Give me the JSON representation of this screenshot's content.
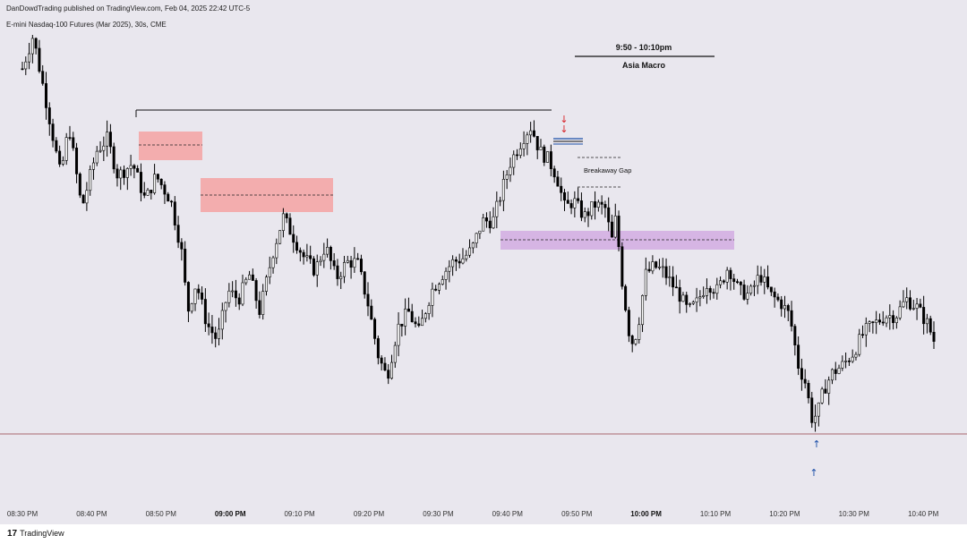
{
  "header": {
    "publisher": "DanDowdTrading published on TradingView.com, Feb 04, 2025 22:42 UTC-5",
    "symbol": "E-mini Nasdaq-100 Futures (Mar 2025), 30s, CME"
  },
  "annotations": {
    "session_time": "9:50 - 10:10pm",
    "session_name": "Asia Macro",
    "gap_label": "Breakaway Gap",
    "down_arrow": "↓",
    "up_arrow": "↑"
  },
  "footer": {
    "logo_mark": "17",
    "logo_text": "TradingView"
  },
  "colors": {
    "background": "#e9e7ee",
    "candle": "#000000",
    "bearish_zone": "#f4a6a6",
    "premium_zone": "#d5b2e3",
    "down_arrow": "#d9252b",
    "up_arrow": "#1c4fa8",
    "support_line": "#a9676e"
  },
  "chart_data": {
    "type": "candlestick",
    "timeframe": "30s",
    "x_ticks": [
      {
        "label": "08:30 PM",
        "bold": false
      },
      {
        "label": "08:40 PM",
        "bold": false
      },
      {
        "label": "08:50 PM",
        "bold": false
      },
      {
        "label": "09:00 PM",
        "bold": true
      },
      {
        "label": "09:10 PM",
        "bold": false
      },
      {
        "label": "09:20 PM",
        "bold": false
      },
      {
        "label": "09:30 PM",
        "bold": false
      },
      {
        "label": "09:40 PM",
        "bold": false
      },
      {
        "label": "09:50 PM",
        "bold": false
      },
      {
        "label": "10:00 PM",
        "bold": true
      },
      {
        "label": "10:10 PM",
        "bold": false
      },
      {
        "label": "10:20 PM",
        "bold": false
      },
      {
        "label": "10:30 PM",
        "bold": false
      },
      {
        "label": "10:40 PM",
        "bold": false
      }
    ],
    "price_path": [
      [
        0,
        0.92
      ],
      [
        0.5,
        1.0
      ],
      [
        1.2,
        0.82
      ],
      [
        1.8,
        0.66
      ],
      [
        2.2,
        0.78
      ],
      [
        2.8,
        0.58
      ],
      [
        3.5,
        0.72
      ],
      [
        4.0,
        0.75
      ],
      [
        4.5,
        0.66
      ],
      [
        5.2,
        0.69
      ],
      [
        5.8,
        0.6
      ],
      [
        6.3,
        0.66
      ],
      [
        7.0,
        0.6
      ],
      [
        7.5,
        0.48
      ],
      [
        7.8,
        0.33
      ],
      [
        8.2,
        0.4
      ],
      [
        8.7,
        0.3
      ],
      [
        9.2,
        0.26
      ],
      [
        9.7,
        0.38
      ],
      [
        10.2,
        0.36
      ],
      [
        10.7,
        0.42
      ],
      [
        11.2,
        0.33
      ],
      [
        11.8,
        0.47
      ],
      [
        12.3,
        0.56
      ],
      [
        12.8,
        0.51
      ],
      [
        13.3,
        0.46
      ],
      [
        13.8,
        0.43
      ],
      [
        14.3,
        0.49
      ],
      [
        14.8,
        0.41
      ],
      [
        15.3,
        0.45
      ],
      [
        15.8,
        0.45
      ],
      [
        16.3,
        0.35
      ],
      [
        16.8,
        0.22
      ],
      [
        17.2,
        0.17
      ],
      [
        17.7,
        0.29
      ],
      [
        18.2,
        0.33
      ],
      [
        18.7,
        0.28
      ],
      [
        19.3,
        0.38
      ],
      [
        19.8,
        0.42
      ],
      [
        20.3,
        0.45
      ],
      [
        20.8,
        0.46
      ],
      [
        21.2,
        0.48
      ],
      [
        21.7,
        0.55
      ],
      [
        22.2,
        0.55
      ],
      [
        22.6,
        0.62
      ],
      [
        23.0,
        0.69
      ],
      [
        23.3,
        0.72
      ],
      [
        23.7,
        0.76
      ],
      [
        24.0,
        0.78
      ],
      [
        24.4,
        0.72
      ],
      [
        24.8,
        0.7
      ],
      [
        25.2,
        0.66
      ],
      [
        25.6,
        0.58
      ],
      [
        26.0,
        0.6
      ],
      [
        26.5,
        0.56
      ],
      [
        27.0,
        0.59
      ],
      [
        27.5,
        0.58
      ],
      [
        27.8,
        0.5
      ],
      [
        28.0,
        0.56
      ],
      [
        28.3,
        0.4
      ],
      [
        28.7,
        0.25
      ],
      [
        29.0,
        0.28
      ],
      [
        29.4,
        0.42
      ],
      [
        29.8,
        0.44
      ],
      [
        30.2,
        0.43
      ],
      [
        30.6,
        0.4
      ],
      [
        31.0,
        0.37
      ],
      [
        31.4,
        0.33
      ],
      [
        31.8,
        0.35
      ],
      [
        32.3,
        0.4
      ],
      [
        32.8,
        0.38
      ],
      [
        33.3,
        0.44
      ],
      [
        33.8,
        0.38
      ],
      [
        34.3,
        0.37
      ],
      [
        34.8,
        0.42
      ],
      [
        35.3,
        0.37
      ],
      [
        35.8,
        0.35
      ],
      [
        36.2,
        0.32
      ],
      [
        36.6,
        0.2
      ],
      [
        37.0,
        0.15
      ],
      [
        37.2,
        0.07
      ],
      [
        37.5,
        0.08
      ],
      [
        37.8,
        0.14
      ],
      [
        38.2,
        0.18
      ],
      [
        38.7,
        0.2
      ],
      [
        39.2,
        0.23
      ],
      [
        39.7,
        0.28
      ],
      [
        40.2,
        0.3
      ],
      [
        40.7,
        0.32
      ],
      [
        41.2,
        0.32
      ],
      [
        41.7,
        0.36
      ],
      [
        42.2,
        0.34
      ],
      [
        42.7,
        0.3
      ],
      [
        43.0,
        0.26
      ]
    ],
    "annotations": [
      {
        "type": "hline",
        "label": "range high"
      },
      {
        "type": "zone",
        "label": "bearish FVG 1"
      },
      {
        "type": "zone",
        "label": "bearish FVG 2"
      },
      {
        "type": "zone",
        "label": "purple zone"
      },
      {
        "type": "level",
        "label": "Breakaway Gap"
      },
      {
        "type": "hline",
        "label": "support"
      }
    ],
    "grid": false,
    "legend": "none"
  }
}
